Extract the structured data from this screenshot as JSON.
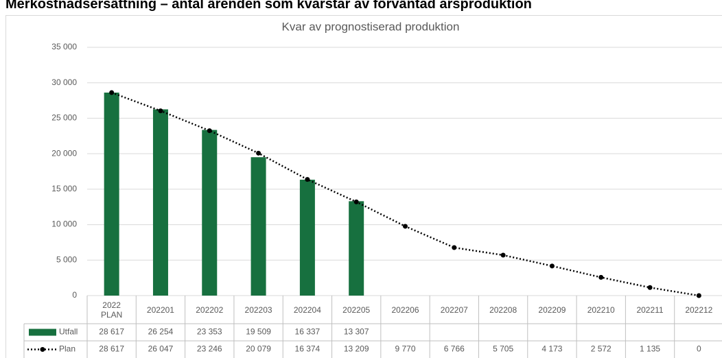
{
  "header": {
    "title": "Merkostnadsersättning – antal ärenden som kvarstår av förväntad årsproduktion"
  },
  "chart_data": {
    "type": "bar",
    "title": "Kvar av prognostiserad produktion",
    "categories": [
      "2022 PLAN",
      "202201",
      "202202",
      "202203",
      "202204",
      "202205",
      "202206",
      "202207",
      "202208",
      "202209",
      "202210",
      "202211",
      "202212"
    ],
    "series": [
      {
        "name": "Utfall",
        "type": "bar",
        "color": "#17703f",
        "values": [
          28617,
          26254,
          23353,
          19509,
          16337,
          13307,
          null,
          null,
          null,
          null,
          null,
          null,
          null
        ],
        "value_labels": [
          "28 617",
          "26 254",
          "23 353",
          "19 509",
          "16 337",
          "13 307",
          null,
          null,
          null,
          null,
          null,
          null,
          null
        ]
      },
      {
        "name": "Plan",
        "type": "line",
        "color": "#000000",
        "values": [
          28617,
          26047,
          23246,
          20079,
          16374,
          13209,
          9770,
          6766,
          5705,
          4173,
          2572,
          1135,
          0
        ],
        "value_labels": [
          "28 617",
          "26 047",
          "23 246",
          "20 079",
          "16 374",
          "13 209",
          "9 770",
          "6 766",
          "5 705",
          "4 173",
          "2 572",
          "1 135",
          "0"
        ]
      }
    ],
    "ylim": [
      0,
      35000
    ],
    "yticks": [
      0,
      {
        "value": 5000,
        "label": "5 000"
      },
      {
        "value": 10000,
        "label": "10 000"
      },
      {
        "value": 15000,
        "label": "15 000"
      },
      {
        "value": 20000,
        "label": "20 000"
      },
      {
        "value": 25000,
        "label": "25 000"
      },
      {
        "value": 30000,
        "label": "30 000"
      },
      {
        "value": 35000,
        "label": "35 000"
      }
    ],
    "grid": true
  }
}
